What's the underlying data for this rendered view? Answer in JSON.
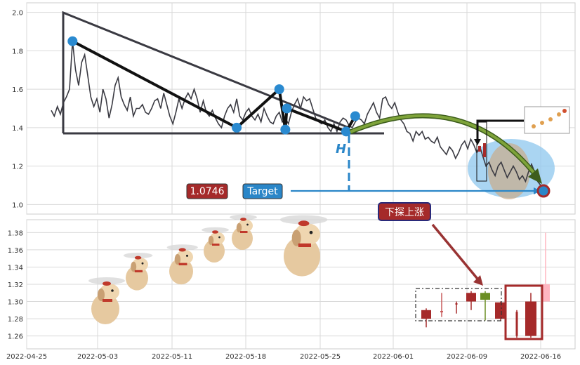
{
  "chart_data": [
    {
      "type": "line",
      "ylim": [
        0.95,
        2.05
      ],
      "yticks": [
        1.0,
        1.2,
        1.4,
        1.6,
        1.8,
        2.0
      ],
      "ytick_labels": [
        "1.0",
        "1.2",
        "1.4",
        "1.6",
        "1.8",
        "2.0"
      ],
      "grid": true,
      "series": [
        {
          "values": [
            1.49,
            1.46,
            1.51,
            1.47,
            1.53,
            1.56,
            1.6,
            1.85,
            1.7,
            1.62,
            1.74,
            1.78,
            1.67,
            1.56,
            1.51,
            1.55,
            1.48,
            1.6,
            1.55,
            1.45,
            1.52,
            1.62,
            1.66,
            1.56,
            1.52,
            1.49,
            1.56,
            1.46,
            1.5,
            1.5,
            1.52,
            1.48,
            1.47,
            1.5,
            1.54,
            1.55,
            1.5,
            1.58,
            1.52,
            1.46,
            1.42,
            1.48,
            1.55,
            1.5,
            1.55,
            1.58,
            1.55,
            1.6,
            1.55,
            1.48,
            1.54,
            1.48,
            1.46,
            1.49,
            1.45,
            1.42,
            1.4,
            1.46,
            1.5,
            1.52,
            1.48,
            1.55,
            1.46,
            1.44,
            1.48,
            1.5,
            1.46,
            1.44,
            1.47,
            1.43,
            1.5,
            1.46,
            1.43,
            1.42,
            1.46,
            1.48,
            1.43,
            1.45,
            1.42,
            1.48,
            1.52,
            1.55,
            1.5,
            1.56,
            1.54,
            1.55,
            1.5,
            1.45,
            1.43,
            1.42,
            1.44,
            1.4,
            1.38,
            1.42,
            1.38,
            1.43,
            1.45,
            1.44,
            1.41,
            1.4,
            1.43,
            1.45,
            1.44,
            1.42,
            1.47,
            1.5,
            1.53,
            1.48,
            1.45,
            1.55,
            1.56,
            1.52,
            1.5,
            1.53,
            1.48,
            1.44,
            1.42,
            1.38,
            1.37,
            1.33,
            1.38,
            1.36,
            1.38,
            1.34,
            1.35,
            1.33,
            1.32,
            1.35,
            1.3,
            1.28,
            1.26,
            1.3,
            1.28,
            1.24,
            1.27,
            1.31,
            1.33,
            1.29,
            1.34,
            1.31,
            1.27,
            1.3,
            1.25,
            1.2,
            1.22,
            1.18,
            1.15,
            1.2,
            1.22,
            1.18,
            1.14,
            1.17,
            1.2,
            1.17,
            1.13,
            1.15,
            1.12,
            1.17,
            1.21,
            1.17,
            1.12,
            1.1
          ]
        }
      ],
      "annotations": {
        "price_label": "1.0746",
        "target_label": "Target",
        "h_label": "H",
        "target_level": 1.0746,
        "pivot_points": [
          {
            "x": 7,
            "y": 1.85
          },
          {
            "x": 61,
            "y": 1.4
          },
          {
            "x": 75,
            "y": 1.6
          },
          {
            "x": 77,
            "y": 1.39
          },
          {
            "x": 77.5,
            "y": 1.5
          },
          {
            "x": 97,
            "y": 1.38
          },
          {
            "x": 100,
            "y": 1.46
          },
          {
            "x": 166,
            "y": 1.08
          }
        ]
      }
    },
    {
      "type": "bar",
      "ylim": [
        1.245,
        1.395
      ],
      "yticks": [
        1.26,
        1.28,
        1.3,
        1.32,
        1.34,
        1.36,
        1.38
      ],
      "ytick_labels": [
        "1.26",
        "1.28",
        "1.30",
        "1.32",
        "1.34",
        "1.36",
        "1.38"
      ],
      "x_tick_labels": [
        "2022-04-25",
        "2022-05-03",
        "2022-05-11",
        "2022-05-18",
        "2022-05-25",
        "2022-06-01",
        "2022-06-09",
        "2022-06-16"
      ],
      "grid": true,
      "annotation_label": "下探上涨",
      "candles": [
        {
          "open": 1.28,
          "close": 1.29,
          "low": 1.27,
          "high": 1.292,
          "color": "#a52a2a"
        },
        {
          "open": 1.288,
          "close": 1.289,
          "low": 1.282,
          "high": 1.31,
          "color": "#c85a5a"
        },
        {
          "open": 1.297,
          "close": 1.298,
          "low": 1.286,
          "high": 1.3,
          "color": "#a52a2a"
        },
        {
          "open": 1.3,
          "close": 1.31,
          "low": 1.29,
          "high": 1.312,
          "color": "#a52a2a"
        },
        {
          "open": 1.31,
          "close": 1.302,
          "low": 1.278,
          "high": 1.312,
          "color": "#6b8e23"
        },
        {
          "open": 1.28,
          "close": 1.299,
          "low": 1.278,
          "high": 1.3,
          "color": "#a52a2a"
        },
        {
          "open": 1.288,
          "close": 1.26,
          "low": 1.258,
          "high": 1.29,
          "color": "#a52a2a"
        },
        {
          "open": 1.26,
          "close": 1.3,
          "low": 1.258,
          "high": 1.31,
          "color": "#a52a2a"
        },
        {
          "open": 1.3,
          "close": 1.32,
          "low": 1.3,
          "high": 1.38,
          "color": "#ffb6c1"
        }
      ]
    }
  ]
}
